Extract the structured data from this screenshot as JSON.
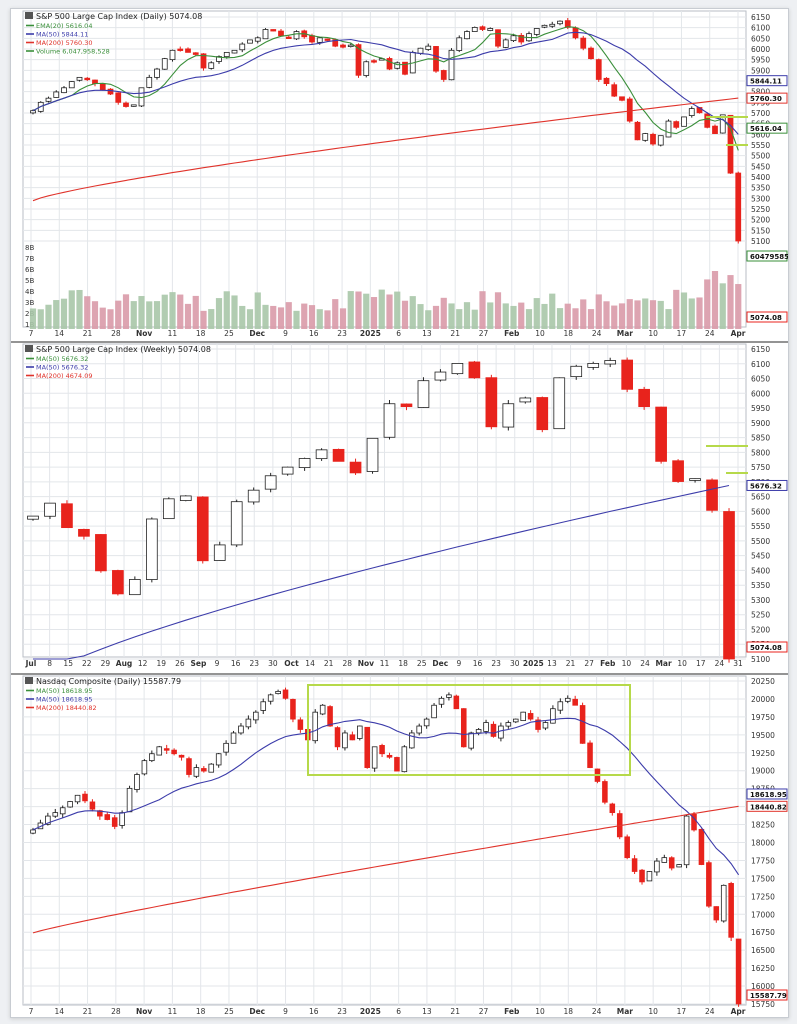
{
  "charts": [
    {
      "title": "S&P 500 Large Cap Index (Daily) 5074.08",
      "legend": [
        {
          "label": "EMA(20) 5616.04",
          "color": "#3a8f3a"
        },
        {
          "label": "MA(50) 5844.11",
          "color": "#3c3caa"
        },
        {
          "label": "MA(200) 5760.30",
          "color": "#e0332b"
        },
        {
          "label": "Volume 6,047,958,528",
          "color": "#3a8f3a"
        }
      ],
      "y_ticks": [
        "6150",
        "6100",
        "6050",
        "6000",
        "5950",
        "5900",
        "5850",
        "5800",
        "5750",
        "5700",
        "5650",
        "5600",
        "5550",
        "5500",
        "5450",
        "5400",
        "5350",
        "5300",
        "5250",
        "5200",
        "5150",
        "5100",
        "5074.08"
      ],
      "x_labels": [
        "7",
        "14",
        "21",
        "28",
        "Nov",
        "11",
        "18",
        "25",
        "Dec",
        "9",
        "16",
        "23",
        "2025",
        "6",
        "13",
        "21",
        "27",
        "Feb",
        "10",
        "18",
        "24",
        "Mar",
        "10",
        "17",
        "24",
        "Apr"
      ],
      "volume_ticks": [
        "8B",
        "7B",
        "6B",
        "5B",
        "4B",
        "3B",
        "2B",
        "1B"
      ],
      "value_tags": [
        "5844.11",
        "5760.30",
        "5616.04",
        "6047958528",
        "5074.08"
      ],
      "chart_data": {
        "type": "candlestick",
        "series": [
          {
            "name": "S&P 500 Large Cap Index",
            "close": [
              5700,
              5740,
              5760,
              5790,
              5810,
              5840,
              5860,
              5850,
              5830,
              5800,
              5780,
              5740,
              5720,
              5728,
              5810,
              5860,
              5900,
              5950,
              5990,
              5995,
              5980,
              5970,
              5905,
              5930,
              5960,
              5980,
              5990,
              6020,
              6040,
              6050,
              6090,
              6085,
              6060,
              6050,
              6080,
              6055,
              6030,
              6050,
              6040,
              6010,
              6005,
              6015,
              5870,
              5935,
              5940,
              5950,
              5900,
              5930,
              5875,
              5980,
              6000,
              6010,
              5890,
              5850,
              5990,
              6050,
              6080,
              6100,
              6090,
              6095,
              6010,
              6040,
              6060,
              6030,
              6070,
              6095,
              6110,
              6115,
              6130,
              6100,
              6050,
              6000,
              5950,
              5850,
              5830,
              5770,
              5750,
              5650,
              5560,
              5590,
              5540,
              5580,
              5650,
              5620,
              5670,
              5710,
              5690,
              5620,
              5590,
              5680,
              5400,
              5074.08
            ]
          },
          {
            "name": "EMA(20)",
            "last": 5616.04
          },
          {
            "name": "MA(50)",
            "last": 5844.11
          },
          {
            "name": "MA(200)",
            "last": 5760.3
          },
          {
            "name": "Volume",
            "last": 6047958528
          }
        ],
        "ylim": [
          5074,
          6150
        ],
        "grid": true
      }
    },
    {
      "title": "S&P 500 Large Cap Index (Weekly) 5074.08",
      "legend": [
        {
          "label": "MA(50) 5676.32",
          "color": "#3a8f3a"
        },
        {
          "label": "MA(50) 5676.32",
          "color": "#3c3caa"
        },
        {
          "label": "MA(200) 4674.09",
          "color": "#e0332b"
        }
      ],
      "y_ticks": [
        "6150",
        "6100",
        "6050",
        "6000",
        "5950",
        "5900",
        "5850",
        "5800",
        "5750",
        "5700",
        "5650",
        "5600",
        "5550",
        "5500",
        "5450",
        "5400",
        "5350",
        "5300",
        "5250",
        "5200",
        "5150",
        "5100",
        "5074.08"
      ],
      "x_labels": [
        "Jul",
        "8",
        "15",
        "22",
        "29",
        "Aug",
        "12",
        "19",
        "26",
        "Sep",
        "9",
        "16",
        "23",
        "30",
        "Oct",
        "14",
        "21",
        "28",
        "Nov",
        "11",
        "18",
        "25",
        "Dec",
        "9",
        "16",
        "23",
        "30",
        "2025",
        "13",
        "21",
        "27",
        "Feb",
        "10",
        "24",
        "Mar",
        "10",
        "17",
        "24",
        "31"
      ],
      "value_tags": [
        "5676.32",
        "5074.08"
      ],
      "chart_data": {
        "type": "candlestick",
        "series": [
          {
            "name": "S&P 500 Large Cap Index (Weekly)",
            "close": [
              5570,
              5615,
              5530,
              5500,
              5380,
              5300,
              5350,
              5560,
              5630,
              5640,
              5415,
              5470,
              5620,
              5660,
              5710,
              5740,
              5770,
              5800,
              5760,
              5720,
              5840,
              5960,
              5950,
              6040,
              6070,
              6100,
              6050,
              5880,
              5960,
              5980,
              5870,
              6050,
              6090,
              6100,
              6110,
              6010,
              5950,
              5760,
              5690,
              5700,
              5590,
              5074.08
            ]
          },
          {
            "name": "MA(50)",
            "last": 5676.32
          },
          {
            "name": "MA(200)",
            "last": 4674.09
          }
        ],
        "ylim": [
          5074,
          6150
        ],
        "grid": true
      }
    },
    {
      "title": "Nasdaq Composite (Daily) 15587.79",
      "legend": [
        {
          "label": "MA(50) 18618.95",
          "color": "#3a8f3a"
        },
        {
          "label": "MA(50) 18618.95",
          "color": "#3c3caa"
        },
        {
          "label": "MA(200) 18440.82",
          "color": "#e0332b"
        }
      ],
      "y_ticks": [
        "20250",
        "20000",
        "19750",
        "19500",
        "19250",
        "19000",
        "18750",
        "18500",
        "18250",
        "18000",
        "17750",
        "17500",
        "17250",
        "17000",
        "16750",
        "16500",
        "16250",
        "16000",
        "15750",
        "15587.79"
      ],
      "x_labels": [
        "7",
        "14",
        "21",
        "28",
        "Nov",
        "11",
        "18",
        "25",
        "Dec",
        "9",
        "16",
        "23",
        "2025",
        "6",
        "13",
        "21",
        "27",
        "Feb",
        "10",
        "18",
        "24",
        "Mar",
        "10",
        "17",
        "24",
        "Apr"
      ],
      "value_tags": [
        "18618.95",
        "18440.82",
        "15587.79"
      ],
      "chart_data": {
        "type": "candlestick",
        "series": [
          {
            "name": "Nasdaq Composite",
            "close": [
              18100,
              18200,
              18300,
              18350,
              18420,
              18510,
              18600,
              18520,
              18400,
              18300,
              18250,
              18150,
              18350,
              18700,
              18900,
              19100,
              19200,
              19300,
              19250,
              19200,
              19150,
              18900,
              19000,
              18950,
              19050,
              19200,
              19350,
              19500,
              19600,
              19700,
              19800,
              19950,
              20050,
              20100,
              20000,
              19700,
              19550,
              19400,
              19800,
              19900,
              19600,
              19300,
              19500,
              19400,
              19600,
              19000,
              19300,
              19200,
              19150,
              18950,
              19300,
              19500,
              19600,
              19700,
              19900,
              20000,
              20050,
              19850,
              19300,
              19500,
              19550,
              19650,
              19450,
              19600,
              19650,
              19700,
              19800,
              19700,
              19550,
              19650,
              19850,
              19950,
              20000,
              19900,
              19350,
              19000,
              18800,
              18500,
              18350,
              18000,
              17700,
              17500,
              17350,
              17500,
              17650,
              17700,
              17550,
              17600,
              18300,
              18100,
              17600,
              17000,
              16800,
              17300,
              16550,
              15587.79
            ]
          },
          {
            "name": "MA(50)",
            "last": 18618.95
          },
          {
            "name": "MA(200)",
            "last": 18440.82
          }
        ],
        "ylim": [
          15587,
          20250
        ],
        "grid": true
      }
    }
  ]
}
